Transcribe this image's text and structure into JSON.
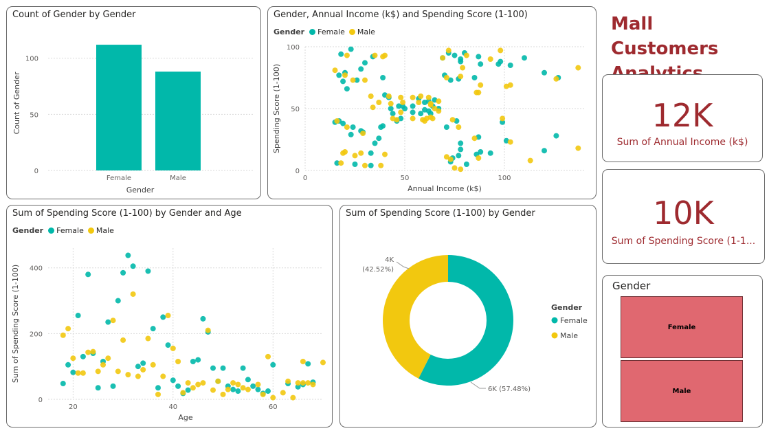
{
  "colors": {
    "female": "#01b8aa",
    "male": "#f2c80f",
    "accent": "#9e2a2f",
    "slicer": "#e06870"
  },
  "header": {
    "title": "Mall Customers Analytics"
  },
  "kpis": [
    {
      "value": "12K",
      "label": "Sum of Annual Income (k$)"
    },
    {
      "value": "10K",
      "label": "Sum of Spending Score (1-1..."
    }
  ],
  "slicer": {
    "title": "Gender",
    "options": [
      "Female",
      "Male"
    ]
  },
  "legend": {
    "title": "Gender",
    "female": "Female",
    "male": "Male"
  },
  "charts": {
    "count": {
      "title": "Count of Gender by Gender"
    },
    "income": {
      "title": "Gender, Annual Income (k$) and Spending Score (1-100)"
    },
    "age": {
      "title": "Sum of Spending Score (1-100) by Gender and Age"
    },
    "donut": {
      "title": "Sum of Spending Score (1-100) by Gender"
    }
  },
  "chart_data": [
    {
      "type": "bar",
      "title": "Count of Gender by Gender",
      "categories": [
        "Female",
        "Male"
      ],
      "values": [
        112,
        88
      ],
      "xlabel": "Gender",
      "ylabel": "Count of Gender",
      "ylim": [
        0,
        120
      ],
      "yticks": [
        0,
        50,
        100
      ],
      "grid": true
    },
    {
      "type": "scatter",
      "title": "Gender, Annual Income (k$) and Spending Score (1-100)",
      "xlabel": "Annual Income (k$)",
      "ylabel": "Spending Score (1-100)",
      "xlim": [
        0,
        140
      ],
      "ylim": [
        0,
        100
      ],
      "xticks": [
        0,
        50,
        100
      ],
      "yticks": [
        0,
        50,
        100
      ],
      "legend": "top-left",
      "series": [
        {
          "name": "Female",
          "points": [
            [
              16,
              6
            ],
            [
              17,
              77
            ],
            [
              18,
              94
            ],
            [
              19,
              72
            ],
            [
              20,
              79
            ],
            [
              21,
              66
            ],
            [
              23,
              29
            ],
            [
              23,
              98
            ],
            [
              24,
              35
            ],
            [
              25,
              5
            ],
            [
              26,
              73
            ],
            [
              28,
              82
            ],
            [
              28,
              32
            ],
            [
              29,
              31
            ],
            [
              30,
              87
            ],
            [
              33,
              4
            ],
            [
              33,
              14
            ],
            [
              34,
              92
            ],
            [
              35,
              22
            ],
            [
              37,
              26
            ],
            [
              38,
              35
            ],
            [
              39,
              36
            ],
            [
              39,
              75
            ],
            [
              40,
              61
            ],
            [
              42,
              59
            ],
            [
              43,
              50
            ],
            [
              44,
              46
            ],
            [
              46,
              40
            ],
            [
              47,
              52
            ],
            [
              48,
              42
            ],
            [
              49,
              52
            ],
            [
              50,
              50
            ],
            [
              54,
              47
            ],
            [
              54,
              52
            ],
            [
              57,
              58
            ],
            [
              58,
              46
            ],
            [
              60,
              49
            ],
            [
              60,
              55
            ],
            [
              62,
              48
            ],
            [
              62,
              56
            ],
            [
              63,
              46
            ],
            [
              64,
              52
            ],
            [
              65,
              57
            ],
            [
              67,
              50
            ],
            [
              69,
              91
            ],
            [
              70,
              77
            ],
            [
              71,
              35
            ],
            [
              72,
              95
            ],
            [
              73,
              73
            ],
            [
              73,
              7
            ],
            [
              74,
              10
            ],
            [
              75,
              93
            ],
            [
              76,
              40
            ],
            [
              77,
              74
            ],
            [
              77,
              12
            ],
            [
              78,
              22
            ],
            [
              78,
              90
            ],
            [
              78,
              17
            ],
            [
              78,
              88
            ],
            [
              80,
              95
            ],
            [
              81,
              5
            ],
            [
              85,
              75
            ],
            [
              86,
              13
            ],
            [
              87,
              92
            ],
            [
              87,
              27
            ],
            [
              88,
              86
            ],
            [
              88,
              15
            ],
            [
              93,
              14
            ],
            [
              97,
              86
            ],
            [
              98,
              88
            ],
            [
              99,
              39
            ],
            [
              101,
              24
            ],
            [
              103,
              85
            ],
            [
              110,
              91
            ],
            [
              120,
              79
            ],
            [
              120,
              16
            ],
            [
              126,
              28
            ],
            [
              127,
              75
            ],
            [
              15,
              39
            ],
            [
              19,
              38
            ],
            [
              17,
              40
            ]
          ]
        },
        {
          "name": "Male",
          "points": [
            [
              15,
              81
            ],
            [
              16,
              40
            ],
            [
              18,
              6
            ],
            [
              19,
              14
            ],
            [
              20,
              77
            ],
            [
              20,
              15
            ],
            [
              21,
              35
            ],
            [
              24,
              73
            ],
            [
              25,
              12
            ],
            [
              28,
              14
            ],
            [
              29,
              30
            ],
            [
              30,
              73
            ],
            [
              30,
              4
            ],
            [
              33,
              60
            ],
            [
              34,
              51
            ],
            [
              35,
              93
            ],
            [
              37,
              55
            ],
            [
              38,
              4
            ],
            [
              39,
              92
            ],
            [
              40,
              13
            ],
            [
              42,
              60
            ],
            [
              43,
              54
            ],
            [
              46,
              41
            ],
            [
              48,
              47
            ],
            [
              48,
              59
            ],
            [
              49,
              55
            ],
            [
              54,
              42
            ],
            [
              54,
              59
            ],
            [
              57,
              55
            ],
            [
              58,
              60
            ],
            [
              59,
              41
            ],
            [
              60,
              40
            ],
            [
              61,
              42
            ],
            [
              62,
              59
            ],
            [
              63,
              54
            ],
            [
              63,
              43
            ],
            [
              64,
              42
            ],
            [
              65,
              50
            ],
            [
              67,
              56
            ],
            [
              67,
              48
            ],
            [
              69,
              91
            ],
            [
              71,
              11
            ],
            [
              71,
              75
            ],
            [
              72,
              97
            ],
            [
              73,
              9
            ],
            [
              74,
              41
            ],
            [
              75,
              2
            ],
            [
              77,
              35
            ],
            [
              78,
              76
            ],
            [
              78,
              1
            ],
            [
              79,
              83
            ],
            [
              81,
              93
            ],
            [
              85,
              26
            ],
            [
              86,
              63
            ],
            [
              87,
              63
            ],
            [
              87,
              10
            ],
            [
              88,
              69
            ],
            [
              93,
              90
            ],
            [
              98,
              97
            ],
            [
              99,
              42
            ],
            [
              101,
              68
            ],
            [
              103,
              69
            ],
            [
              103,
              23
            ],
            [
              113,
              8
            ],
            [
              126,
              74
            ],
            [
              137,
              18
            ],
            [
              137,
              83
            ],
            [
              21,
              93
            ],
            [
              40,
              93
            ],
            [
              44,
              42
            ],
            [
              63,
              53
            ]
          ]
        }
      ]
    },
    {
      "type": "scatter",
      "title": "Sum of Spending Score (1-100) by Gender and Age",
      "xlabel": "Age",
      "ylabel": "Sum of Spending Score (1-100)",
      "xlim": [
        15,
        70
      ],
      "ylim": [
        0,
        460
      ],
      "xticks": [
        20,
        40,
        60
      ],
      "yticks": [
        0,
        200,
        400
      ],
      "legend": "top-left",
      "series": [
        {
          "name": "Female",
          "points": [
            [
              18,
              48
            ],
            [
              19,
              105
            ],
            [
              20,
              82
            ],
            [
              21,
              255
            ],
            [
              22,
              130
            ],
            [
              23,
              380
            ],
            [
              24,
              140
            ],
            [
              25,
              35
            ],
            [
              26,
              115
            ],
            [
              27,
              235
            ],
            [
              28,
              40
            ],
            [
              29,
              300
            ],
            [
              30,
              385
            ],
            [
              31,
              438
            ],
            [
              32,
              405
            ],
            [
              33,
              100
            ],
            [
              34,
              110
            ],
            [
              35,
              390
            ],
            [
              36,
              215
            ],
            [
              37,
              35
            ],
            [
              38,
              250
            ],
            [
              39,
              165
            ],
            [
              40,
              58
            ],
            [
              41,
              40
            ],
            [
              42,
              18
            ],
            [
              43,
              28
            ],
            [
              44,
              115
            ],
            [
              45,
              120
            ],
            [
              46,
              245
            ],
            [
              47,
              205
            ],
            [
              48,
              95
            ],
            [
              49,
              55
            ],
            [
              50,
              95
            ],
            [
              51,
              40
            ],
            [
              52,
              30
            ],
            [
              53,
              25
            ],
            [
              54,
              95
            ],
            [
              55,
              60
            ],
            [
              56,
              40
            ],
            [
              57,
              30
            ],
            [
              58,
              18
            ],
            [
              59,
              25
            ],
            [
              60,
              105
            ],
            [
              63,
              48
            ],
            [
              65,
              38
            ],
            [
              66,
              45
            ],
            [
              67,
              108
            ],
            [
              68,
              52
            ]
          ]
        },
        {
          "name": "Male",
          "points": [
            [
              18,
              195
            ],
            [
              19,
              215
            ],
            [
              20,
              125
            ],
            [
              21,
              80
            ],
            [
              22,
              80
            ],
            [
              23,
              143
            ],
            [
              24,
              145
            ],
            [
              25,
              85
            ],
            [
              26,
              105
            ],
            [
              27,
              125
            ],
            [
              28,
              240
            ],
            [
              29,
              85
            ],
            [
              30,
              180
            ],
            [
              31,
              75
            ],
            [
              32,
              320
            ],
            [
              33,
              70
            ],
            [
              34,
              90
            ],
            [
              35,
              185
            ],
            [
              36,
              105
            ],
            [
              37,
              15
            ],
            [
              38,
              70
            ],
            [
              39,
              255
            ],
            [
              40,
              155
            ],
            [
              41,
              115
            ],
            [
              42,
              20
            ],
            [
              43,
              50
            ],
            [
              44,
              35
            ],
            [
              45,
              45
            ],
            [
              46,
              50
            ],
            [
              47,
              210
            ],
            [
              48,
              28
            ],
            [
              49,
              55
            ],
            [
              50,
              15
            ],
            [
              51,
              30
            ],
            [
              52,
              50
            ],
            [
              53,
              45
            ],
            [
              54,
              35
            ],
            [
              55,
              30
            ],
            [
              57,
              45
            ],
            [
              58,
              15
            ],
            [
              59,
              130
            ],
            [
              60,
              5
            ],
            [
              63,
              55
            ],
            [
              64,
              5
            ],
            [
              65,
              50
            ],
            [
              66,
              115
            ],
            [
              67,
              50
            ],
            [
              68,
              45
            ],
            [
              70,
              112
            ],
            [
              62,
              20
            ],
            [
              66,
              50
            ]
          ]
        }
      ]
    },
    {
      "type": "pie",
      "title": "Sum of Spending Score (1-100) by Gender",
      "donut": true,
      "legend": "right",
      "series": [
        {
          "name": "Female",
          "value": 5771,
          "label": "6K (57.48%)"
        },
        {
          "name": "Male",
          "value": 4269,
          "label": "4K",
          "percent_label": "(42.52%)"
        }
      ]
    }
  ]
}
